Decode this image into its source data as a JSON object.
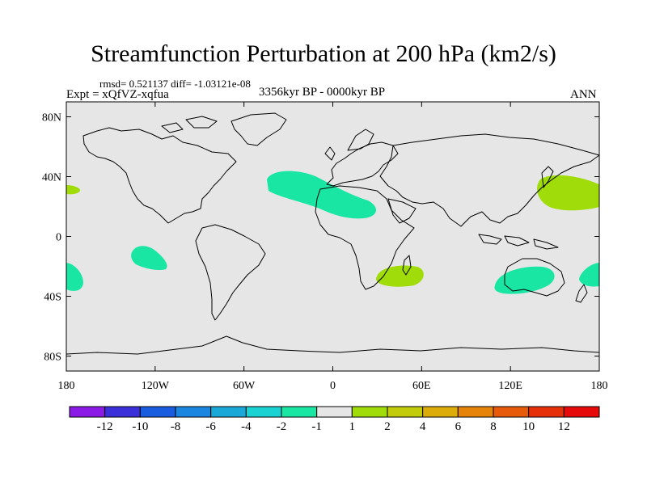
{
  "title": "Streamfunction Perturbation at 200 hPa (km2/s)",
  "stats": "rmsd= 0.521137  diff= -1.03121e-08",
  "left_label": "Expt = xQfVZ-xqfua",
  "center_label": "3356kyr BP - 0000kyr BP",
  "right_label": "ANN",
  "map": {
    "projection": "cylindrical equidistant",
    "lon_range": [
      -180,
      180
    ],
    "lat_range": [
      -90,
      90
    ],
    "ocean_land_fill": "#e6e6e6",
    "coastline_color": "#000000",
    "lat_ticks": [
      {
        "value": 80,
        "label": "80N"
      },
      {
        "value": 40,
        "label": "40N"
      },
      {
        "value": 0,
        "label": "0"
      },
      {
        "value": -40,
        "label": "40S"
      },
      {
        "value": -80,
        "label": "80S"
      }
    ],
    "lon_ticks": [
      {
        "value": -180,
        "label": "180"
      },
      {
        "value": -120,
        "label": "120W"
      },
      {
        "value": -60,
        "label": "60W"
      },
      {
        "value": 0,
        "label": "0"
      },
      {
        "value": 60,
        "label": "60E"
      },
      {
        "value": 120,
        "label": "120E"
      },
      {
        "value": 180,
        "label": "180"
      }
    ]
  },
  "chart_data": {
    "type": "heatmap",
    "variable": "Streamfunction perturbation at 200 hPa",
    "units": "km2/s",
    "levels": [
      -12,
      -10,
      -8,
      -6,
      -4,
      -2,
      -1,
      1,
      2,
      4,
      6,
      8,
      10,
      12
    ],
    "colors": [
      "#8c1ae6",
      "#3a2fd8",
      "#1a5ce0",
      "#1a86e0",
      "#1aa8d8",
      "#1ad2d2",
      "#1ae6a3",
      "#e6e6e6",
      "#a0dc0a",
      "#c2cc0a",
      "#dcac0a",
      "#e6840a",
      "#e65a0a",
      "#e6300a",
      "#e60a0a"
    ],
    "regions": [
      {
        "name": "north-atlantic-africa",
        "category": "-2 to -1",
        "lon": [
          -45,
          30
        ],
        "lat": [
          15,
          45
        ]
      },
      {
        "name": "east-pacific-south",
        "category": "-2 to -1",
        "lon": [
          -135,
          -115
        ],
        "lat": [
          -20,
          -5
        ]
      },
      {
        "name": "southeast-pacific",
        "category": "-2 to -1",
        "lon": [
          -180,
          -172
        ],
        "lat": [
          -35,
          -18
        ]
      },
      {
        "name": "australia",
        "category": "-2 to -1",
        "lon": [
          110,
          150
        ],
        "lat": [
          -37,
          -20
        ]
      },
      {
        "name": "southwest-pacific",
        "category": "-2 to -1",
        "lon": [
          165,
          180
        ],
        "lat": [
          -30,
          -15
        ]
      },
      {
        "name": "east-of-japan",
        "category": "1 to 2",
        "lon": [
          138,
          180
        ],
        "lat": [
          20,
          42
        ]
      },
      {
        "name": "mid-pacific-north",
        "category": "1 to 2",
        "lon": [
          -180,
          -172
        ],
        "lat": [
          32,
          38
        ]
      },
      {
        "name": "madagascar",
        "category": "1 to 2",
        "lon": [
          15,
          60
        ],
        "lat": [
          -32,
          -15
        ]
      }
    ]
  }
}
